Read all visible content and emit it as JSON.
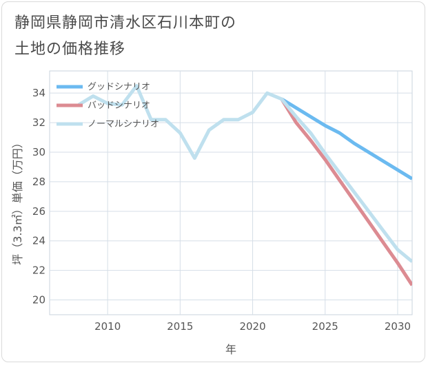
{
  "title_lines": [
    "静岡県静岡市清水区石川本町の",
    "土地の価格推移"
  ],
  "chart_data": {
    "type": "line",
    "title": "静岡県静岡市清水区石川本町の土地の価格推移",
    "xlabel": "年",
    "ylabel": "坪（3.3㎡）単価（万円）",
    "xlim": [
      2006,
      2031
    ],
    "ylim": [
      19,
      35.5
    ],
    "x_ticks": [
      2010,
      2015,
      2020,
      2025,
      2030
    ],
    "y_ticks": [
      20,
      22,
      24,
      26,
      28,
      30,
      32,
      34
    ],
    "grid": true,
    "legend_position": "top-left",
    "series": [
      {
        "name": "グッドシナリオ",
        "color": "#6bbaf0",
        "x": [
          2022,
          2023,
          2024,
          2025,
          2026,
          2027,
          2028,
          2029,
          2030,
          2031
        ],
        "values": [
          33.6,
          33.0,
          32.4,
          31.8,
          31.3,
          30.6,
          30.0,
          29.4,
          28.8,
          28.2
        ]
      },
      {
        "name": "バッドシナリオ",
        "color": "#dc8b92",
        "x": [
          2022,
          2023,
          2024,
          2025,
          2026,
          2027,
          2028,
          2029,
          2030,
          2031
        ],
        "values": [
          33.6,
          32.0,
          30.8,
          29.5,
          28.1,
          26.7,
          25.3,
          23.9,
          22.5,
          21.0
        ]
      },
      {
        "name": "ノーマルシナリオ",
        "color": "#bfe0ee",
        "x": [
          2008,
          2009,
          2010,
          2011,
          2012,
          2013,
          2014,
          2015,
          2016,
          2017,
          2018,
          2019,
          2020,
          2021,
          2022,
          2023,
          2024,
          2025,
          2026,
          2027,
          2028,
          2029,
          2030,
          2031
        ],
        "values": [
          33.2,
          33.8,
          33.3,
          33.2,
          34.5,
          32.2,
          32.2,
          31.3,
          29.6,
          31.5,
          32.2,
          32.2,
          32.7,
          34.0,
          33.6,
          32.4,
          31.3,
          29.9,
          28.6,
          27.3,
          26.0,
          24.7,
          23.4,
          22.6
        ]
      }
    ]
  }
}
